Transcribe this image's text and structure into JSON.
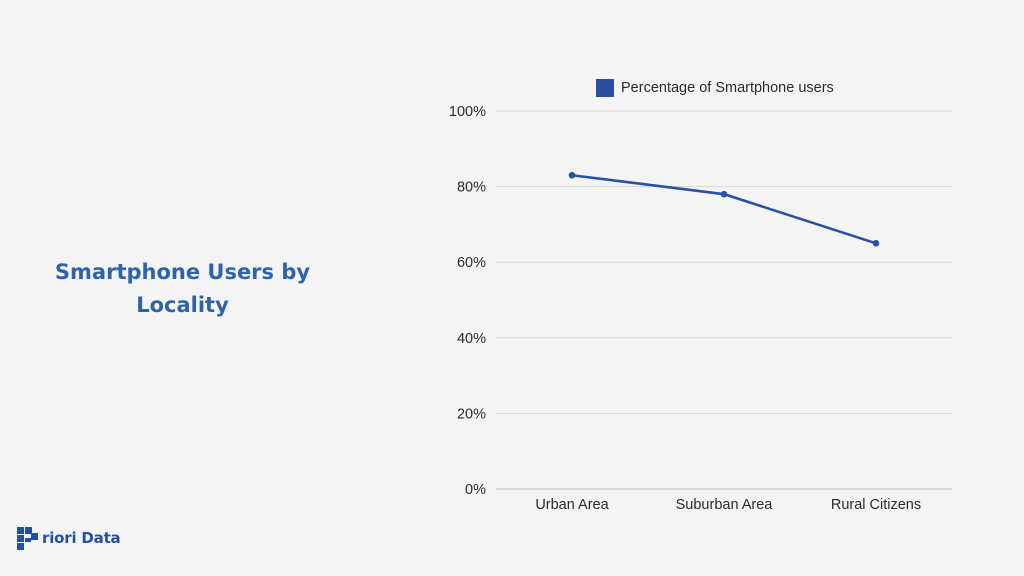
{
  "page": {
    "title": "Smartphone Users by Locality",
    "brand": "riori Data",
    "brand_color": "#244fa6",
    "title_color": "#2f63a8"
  },
  "chart_data": {
    "type": "line",
    "categories": [
      "Urban Area",
      "Suburban Area",
      "Rural Citizens"
    ],
    "series": [
      {
        "name": "Percentage of Smartphone users",
        "values": [
          83,
          78,
          65
        ],
        "color": "#2a4fa3"
      }
    ],
    "ylim": [
      0,
      100
    ],
    "yticks": [
      0,
      20,
      40,
      60,
      80,
      100
    ],
    "ytick_labels": [
      "0%",
      "20%",
      "40%",
      "60%",
      "80%",
      "100%"
    ],
    "grid": true,
    "legend_position": "top"
  }
}
